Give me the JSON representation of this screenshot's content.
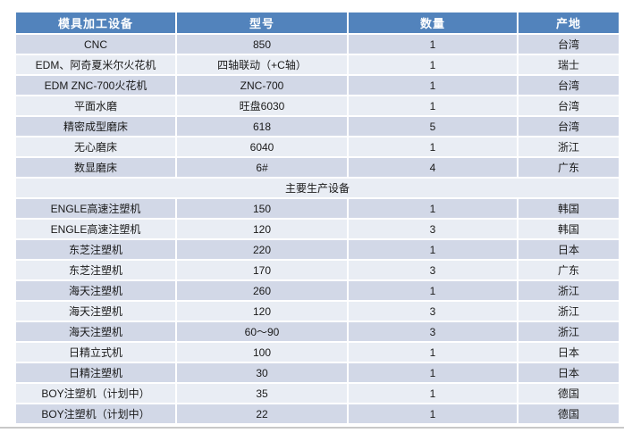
{
  "table": {
    "columns": [
      "模具加工设备",
      "型号",
      "数量",
      "产地"
    ],
    "section_label": "主要生产设备",
    "colors": {
      "header_bg": "#5283BC",
      "header_text": "#FFFFFF",
      "band_dark": "#D2D8E7",
      "band_light": "#E9EDF4",
      "body_text": "#1A1A1A",
      "row_divider": "#FFFFFF",
      "bottom_line": "#C8C8C8"
    },
    "rows": [
      {
        "device": "CNC",
        "model": "850",
        "qty": "1",
        "origin": "台湾"
      },
      {
        "device": "EDM、阿奇夏米尔火花机",
        "model": "四轴联动（+C轴）",
        "qty": "1",
        "origin": "瑞士"
      },
      {
        "device": "EDM ZNC-700火花机",
        "model": "ZNC-700",
        "qty": "1",
        "origin": "台湾"
      },
      {
        "device": "平面水磨",
        "model": "旺盘6030",
        "qty": "1",
        "origin": "台湾"
      },
      {
        "device": "精密成型磨床",
        "model": "618",
        "qty": "5",
        "origin": "台湾"
      },
      {
        "device": "无心磨床",
        "model": "6040",
        "qty": "1",
        "origin": "浙江"
      },
      {
        "device": "数显磨床",
        "model": "6#",
        "qty": "4",
        "origin": "广东"
      },
      {
        "device": "ENGLE高速注塑机",
        "model": "150",
        "qty": "1",
        "origin": "韩国"
      },
      {
        "device": "ENGLE高速注塑机",
        "model": "120",
        "qty": "3",
        "origin": "韩国"
      },
      {
        "device": "东芝注塑机",
        "model": "220",
        "qty": "1",
        "origin": "日本"
      },
      {
        "device": "东芝注塑机",
        "model": "170",
        "qty": "3",
        "origin": "广东"
      },
      {
        "device": "海天注塑机",
        "model": "260",
        "qty": "1",
        "origin": "浙江"
      },
      {
        "device": "海天注塑机",
        "model": "120",
        "qty": "3",
        "origin": "浙江"
      },
      {
        "device": "海天注塑机",
        "model": "60～90",
        "qty": "3",
        "origin": "浙江"
      },
      {
        "device": "日精立式机",
        "model": "100",
        "qty": "1",
        "origin": "日本"
      },
      {
        "device": "日精注塑机",
        "model": "30",
        "qty": "1",
        "origin": "日本"
      },
      {
        "device": "BOY注塑机（计划中）",
        "model": "35",
        "qty": "1",
        "origin": "德国"
      },
      {
        "device": "BOY注塑机（计划中）",
        "model": "22",
        "qty": "1",
        "origin": "德国"
      }
    ]
  }
}
